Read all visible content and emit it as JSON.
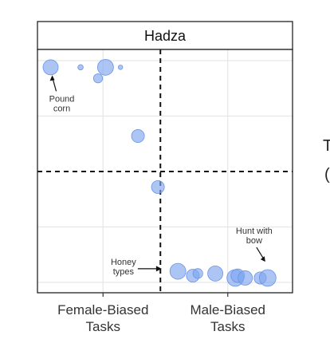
{
  "chart_data": {
    "type": "scatter",
    "panel_title": "Hadza",
    "x_categories": [
      "Female-Biased\nTasks",
      "Male-Biased\nTasks"
    ],
    "xlim": [
      0,
      1
    ],
    "ylim": [
      0,
      1
    ],
    "x_divider": 0.48,
    "y_divider": 0.5,
    "grid": true,
    "point_color": "#7FA6F0",
    "points": [
      {
        "x": 0.04,
        "y": 0.97,
        "size": 1.0
      },
      {
        "x": 0.16,
        "y": 0.97,
        "size": 0.35
      },
      {
        "x": 0.26,
        "y": 0.97,
        "size": 1.05
      },
      {
        "x": 0.32,
        "y": 0.97,
        "size": 0.3
      },
      {
        "x": 0.23,
        "y": 0.92,
        "size": 0.6
      },
      {
        "x": 0.39,
        "y": 0.66,
        "size": 0.85
      },
      {
        "x": 0.47,
        "y": 0.43,
        "size": 0.85
      },
      {
        "x": 0.55,
        "y": 0.05,
        "size": 1.05
      },
      {
        "x": 0.61,
        "y": 0.03,
        "size": 0.85
      },
      {
        "x": 0.63,
        "y": 0.04,
        "size": 0.65
      },
      {
        "x": 0.7,
        "y": 0.04,
        "size": 1.0
      },
      {
        "x": 0.78,
        "y": 0.02,
        "size": 1.1
      },
      {
        "x": 0.79,
        "y": 0.03,
        "size": 0.9
      },
      {
        "x": 0.82,
        "y": 0.02,
        "size": 0.95
      },
      {
        "x": 0.88,
        "y": 0.02,
        "size": 0.8
      },
      {
        "x": 0.91,
        "y": 0.02,
        "size": 1.1
      }
    ],
    "annotations": [
      {
        "label": "Pound\ncorn",
        "x": 0.04,
        "y": 0.97
      },
      {
        "label": "Honey\ntypes",
        "x": 0.53,
        "y": 0.04
      },
      {
        "label": "Hunt with\nbow",
        "x": 0.91,
        "y": 0.05
      }
    ]
  },
  "cutoff_text": [
    "T",
    "("
  ]
}
